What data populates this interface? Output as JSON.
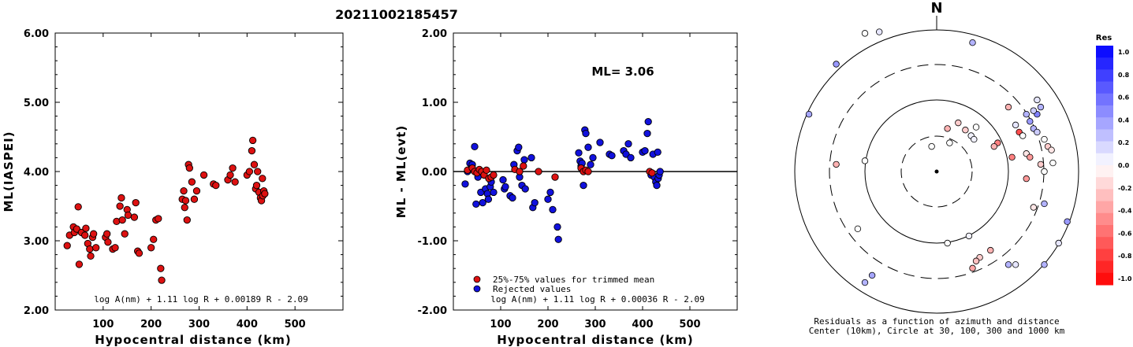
{
  "title": "20211002185457",
  "colors": {
    "red": "#dd1111",
    "blue": "#1111dd",
    "axis": "#000000"
  },
  "chart_data": [
    {
      "type": "scatter",
      "xlabel": "Hypocentral distance (km)",
      "ylabel": "ML(IASPEI)",
      "xlim": [
        0,
        600
      ],
      "ylim": [
        2,
        6
      ],
      "xticks": [
        "100",
        "200",
        "300",
        "400",
        "500"
      ],
      "yticks": [
        "2.00",
        "3.00",
        "4.00",
        "5.00",
        "6.00"
      ],
      "formula": "log A(nm) + 1.11 log R + 0.00189 R - 2.09",
      "points": [
        [
          25,
          2.93
        ],
        [
          30,
          3.08
        ],
        [
          38,
          3.2
        ],
        [
          40,
          3.12
        ],
        [
          45,
          3.17
        ],
        [
          48,
          3.49
        ],
        [
          50,
          2.66
        ],
        [
          55,
          3.12
        ],
        [
          62,
          3.08
        ],
        [
          64,
          3.18
        ],
        [
          68,
          2.96
        ],
        [
          72,
          2.88
        ],
        [
          74,
          2.78
        ],
        [
          78,
          3.05
        ],
        [
          80,
          3.1
        ],
        [
          85,
          2.9
        ],
        [
          105,
          3.05
        ],
        [
          108,
          3.1
        ],
        [
          110,
          2.98
        ],
        [
          120,
          2.88
        ],
        [
          125,
          2.9
        ],
        [
          128,
          3.28
        ],
        [
          135,
          3.5
        ],
        [
          138,
          3.62
        ],
        [
          140,
          3.3
        ],
        [
          145,
          3.1
        ],
        [
          150,
          3.45
        ],
        [
          152,
          3.37
        ],
        [
          165,
          3.34
        ],
        [
          168,
          3.55
        ],
        [
          172,
          2.85
        ],
        [
          175,
          2.82
        ],
        [
          200,
          2.9
        ],
        [
          205,
          3.02
        ],
        [
          210,
          3.3
        ],
        [
          215,
          3.32
        ],
        [
          220,
          2.6
        ],
        [
          222,
          2.43
        ],
        [
          265,
          3.6
        ],
        [
          268,
          3.72
        ],
        [
          270,
          3.48
        ],
        [
          272,
          3.58
        ],
        [
          275,
          3.3
        ],
        [
          278,
          4.1
        ],
        [
          280,
          4.05
        ],
        [
          285,
          3.85
        ],
        [
          290,
          3.6
        ],
        [
          295,
          3.72
        ],
        [
          310,
          3.95
        ],
        [
          330,
          3.82
        ],
        [
          335,
          3.8
        ],
        [
          360,
          3.88
        ],
        [
          365,
          3.95
        ],
        [
          370,
          4.05
        ],
        [
          375,
          3.85
        ],
        [
          400,
          3.95
        ],
        [
          405,
          4.0
        ],
        [
          410,
          4.3
        ],
        [
          412,
          4.45
        ],
        [
          415,
          4.1
        ],
        [
          418,
          3.75
        ],
        [
          420,
          3.8
        ],
        [
          422,
          4.0
        ],
        [
          425,
          3.7
        ],
        [
          428,
          3.62
        ],
        [
          430,
          3.58
        ],
        [
          432,
          3.9
        ],
        [
          433,
          3.65
        ],
        [
          435,
          3.72
        ],
        [
          437,
          3.68
        ]
      ]
    },
    {
      "type": "scatter",
      "xlabel": "Hypocentral distance (km)",
      "ylabel": "ML - ML(evt)",
      "xlim": [
        0,
        600
      ],
      "ylim": [
        -2,
        2
      ],
      "xticks": [
        "100",
        "200",
        "300",
        "400",
        "500"
      ],
      "yticks": [
        "-2.00",
        "-1.00",
        "0.00",
        "1.00",
        "2.00"
      ],
      "annotation": "ML= 3.06",
      "formula": "log A(nm) + 1.11 log R + 0.00036 R - 2.09",
      "legend": [
        {
          "label": "25%-75% values for trimmed mean",
          "color": "#dd1111"
        },
        {
          "label": "Rejected values",
          "color": "#1111dd"
        }
      ],
      "series": [
        {
          "color": "#dd1111",
          "points": [
            [
              30,
              0.02
            ],
            [
              40,
              0.05
            ],
            [
              45,
              0.0
            ],
            [
              50,
              -0.02
            ],
            [
              55,
              0.03
            ],
            [
              60,
              0.0
            ],
            [
              65,
              -0.05
            ],
            [
              70,
              0.02
            ],
            [
              75,
              -0.1
            ],
            [
              80,
              -0.08
            ],
            [
              85,
              -0.05
            ],
            [
              130,
              0.03
            ],
            [
              140,
              0.0
            ],
            [
              148,
              0.08
            ],
            [
              180,
              0.0
            ],
            [
              215,
              -0.08
            ],
            [
              270,
              0.05
            ],
            [
              275,
              0.0
            ],
            [
              280,
              0.02
            ],
            [
              285,
              0.0
            ],
            [
              415,
              0.0
            ],
            [
              420,
              -0.02
            ]
          ]
        },
        {
          "color": "#1111dd",
          "points": [
            [
              25,
              -0.18
            ],
            [
              30,
              0.0
            ],
            [
              35,
              0.12
            ],
            [
              38,
              0.05
            ],
            [
              40,
              0.1
            ],
            [
              45,
              0.36
            ],
            [
              48,
              -0.47
            ],
            [
              52,
              -0.08
            ],
            [
              58,
              -0.3
            ],
            [
              62,
              -0.45
            ],
            [
              68,
              -0.25
            ],
            [
              72,
              -0.32
            ],
            [
              74,
              -0.4
            ],
            [
              78,
              -0.22
            ],
            [
              80,
              -0.15
            ],
            [
              85,
              -0.3
            ],
            [
              105,
              -0.12
            ],
            [
              108,
              -0.25
            ],
            [
              110,
              -0.22
            ],
            [
              120,
              -0.35
            ],
            [
              125,
              -0.38
            ],
            [
              128,
              0.1
            ],
            [
              135,
              0.3
            ],
            [
              138,
              0.35
            ],
            [
              140,
              -0.08
            ],
            [
              145,
              -0.2
            ],
            [
              150,
              0.17
            ],
            [
              152,
              -0.25
            ],
            [
              165,
              0.2
            ],
            [
              168,
              -0.52
            ],
            [
              172,
              -0.45
            ],
            [
              200,
              -0.4
            ],
            [
              205,
              -0.3
            ],
            [
              210,
              -0.55
            ],
            [
              220,
              -0.8
            ],
            [
              222,
              -0.98
            ],
            [
              265,
              0.27
            ],
            [
              268,
              0.15
            ],
            [
              270,
              0.08
            ],
            [
              272,
              0.12
            ],
            [
              275,
              -0.2
            ],
            [
              278,
              0.6
            ],
            [
              280,
              0.55
            ],
            [
              285,
              0.35
            ],
            [
              290,
              0.1
            ],
            [
              295,
              0.2
            ],
            [
              310,
              0.42
            ],
            [
              330,
              0.25
            ],
            [
              335,
              0.23
            ],
            [
              360,
              0.3
            ],
            [
              365,
              0.25
            ],
            [
              370,
              0.4
            ],
            [
              375,
              0.2
            ],
            [
              400,
              0.28
            ],
            [
              405,
              0.3
            ],
            [
              410,
              0.55
            ],
            [
              412,
              0.72
            ],
            [
              418,
              -0.05
            ],
            [
              422,
              0.25
            ],
            [
              425,
              -0.08
            ],
            [
              428,
              -0.15
            ],
            [
              430,
              -0.2
            ],
            [
              432,
              0.28
            ],
            [
              433,
              -0.1
            ],
            [
              435,
              -0.05
            ],
            [
              437,
              0.0
            ]
          ]
        }
      ]
    },
    {
      "type": "scatter",
      "north_label": "N",
      "caption": "Residuals as a function of azimuth and distance",
      "caption2": "Center (10km), Circle at 30, 100, 300 and 1000 km",
      "colorbar_title": "Res",
      "colorbar_ticks": [
        "1.0",
        "0.8",
        "0.6",
        "0.4",
        "0.2",
        "0.0",
        "-0.2",
        "-0.4",
        "-0.6",
        "-0.8",
        "-1.0"
      ],
      "polar_points": [
        [
          0.5,
          1.8,
          0.3
        ],
        [
          -0.8,
          1.95,
          0.1
        ],
        [
          -1.4,
          1.5,
          0.4
        ],
        [
          -1.78,
          0.8,
          0.35
        ],
        [
          -1.0,
          0.15,
          0.0
        ],
        [
          -1.4,
          0.1,
          -0.3
        ],
        [
          -0.9,
          -1.45,
          0.35
        ],
        [
          -1.0,
          -1.55,
          0.3
        ],
        [
          -1.1,
          -0.8,
          0.0
        ],
        [
          0.45,
          -0.9,
          0.05
        ],
        [
          0.15,
          -1.0,
          0.0
        ],
        [
          0.5,
          -1.35,
          -0.35
        ],
        [
          0.6,
          -1.2,
          -0.2
        ],
        [
          0.55,
          -1.25,
          -0.25
        ],
        [
          0.75,
          -1.1,
          -0.3
        ],
        [
          1.0,
          -1.3,
          0.3
        ],
        [
          1.1,
          -1.3,
          0.1
        ],
        [
          1.5,
          -1.3,
          0.3
        ],
        [
          1.7,
          -1.0,
          0.1
        ],
        [
          1.82,
          -0.7,
          0.4
        ],
        [
          1.25,
          -0.1,
          -0.4
        ],
        [
          1.05,
          0.2,
          -0.5
        ],
        [
          0.85,
          0.4,
          -0.5
        ],
        [
          0.8,
          0.35,
          -0.3
        ],
        [
          0.3,
          0.68,
          -0.2
        ],
        [
          0.15,
          0.6,
          -0.3
        ],
        [
          0.4,
          0.58,
          -0.2
        ],
        [
          0.55,
          0.62,
          0.0
        ],
        [
          0.48,
          0.5,
          0.05
        ],
        [
          0.52,
          0.45,
          0.05
        ],
        [
          0.18,
          0.4,
          0.0
        ],
        [
          1.1,
          0.65,
          0.1
        ],
        [
          1.15,
          0.55,
          -0.7
        ],
        [
          1.25,
          0.8,
          0.3
        ],
        [
          1.3,
          0.7,
          0.4
        ],
        [
          1.4,
          0.8,
          0.5
        ],
        [
          1.35,
          0.6,
          0.3
        ],
        [
          1.4,
          0.55,
          0.2
        ],
        [
          1.2,
          0.5,
          0.0
        ],
        [
          1.5,
          0.45,
          0.0
        ],
        [
          1.55,
          0.35,
          -0.2
        ],
        [
          1.6,
          0.3,
          -0.1
        ],
        [
          1.25,
          0.25,
          -0.1
        ],
        [
          1.3,
          0.2,
          -0.4
        ],
        [
          1.45,
          0.1,
          -0.2
        ],
        [
          1.5,
          0.0,
          0.0
        ],
        [
          1.62,
          0.12,
          0.0
        ],
        [
          1.35,
          0.85,
          0.2
        ],
        [
          -0.07,
          0.35,
          0.0
        ],
        [
          1.45,
          0.9,
          0.3
        ],
        [
          1.4,
          1.0,
          0.1
        ],
        [
          -1.0,
          1.93,
          0.0
        ],
        [
          1.35,
          -0.5,
          -0.1
        ],
        [
          1.5,
          -0.45,
          0.3
        ],
        [
          1.0,
          0.9,
          -0.3
        ]
      ]
    }
  ]
}
